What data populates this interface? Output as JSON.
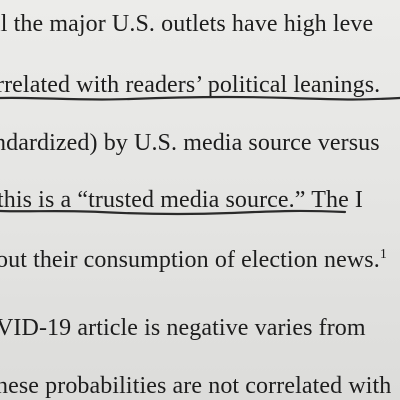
{
  "document": {
    "lines": [
      "ll the major U.S. outlets have high leve",
      "rrelated with readers’ political leanings.",
      "ndardized) by U.S. media source versus",
      "this is a “trusted media source.”  The I",
      "out their consumption of election news.",
      "VID-19 article is negative varies from",
      "nese probabilities are not correlated with"
    ],
    "footnote_marker": "1"
  }
}
